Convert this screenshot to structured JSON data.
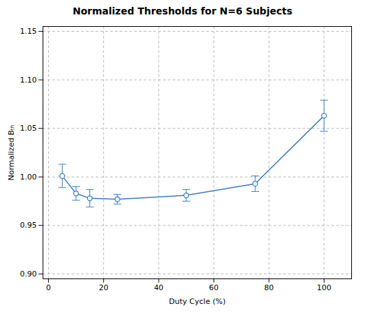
{
  "chart_data": {
    "type": "line",
    "title": "Normalized Thresholds for N=6 Subjects",
    "xlabel": "Duty Cycle (%)",
    "ylabel": "Normalized Bₜₕ",
    "x": [
      5,
      10,
      15,
      25,
      50,
      75,
      100
    ],
    "values": [
      1.001,
      0.983,
      0.978,
      0.977,
      0.981,
      0.993,
      1.063
    ],
    "yerr": [
      0.012,
      0.007,
      0.009,
      0.005,
      0.006,
      0.008,
      0.016
    ],
    "color": "#3a7bbf",
    "marker": "circle",
    "xlim": [
      -2,
      110
    ],
    "ylim": [
      0.895,
      1.155
    ],
    "xticks": [
      0,
      20,
      40,
      60,
      80,
      100
    ],
    "yticks": [
      {
        "value": 0.9,
        "label": "0.90"
      },
      0.95,
      {
        "value": 1.0,
        "label": "1.00"
      },
      1.05,
      {
        "value": 1.1,
        "label": "1.10"
      },
      1.15
    ],
    "grid": true
  }
}
